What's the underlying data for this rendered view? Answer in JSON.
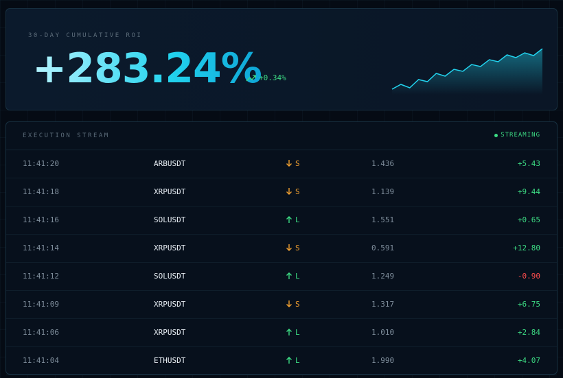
{
  "header": {
    "label": "30-DAY CUMULATIVE ROI",
    "value": "+283.24%",
    "change": "+0.34%",
    "sparkline": [
      0,
      7,
      2,
      14,
      11,
      23,
      19,
      29,
      26,
      36,
      33,
      43,
      40,
      50,
      46,
      53,
      49,
      59
    ]
  },
  "stream": {
    "title": "EXECUTION STREAM",
    "status": "STREAMING",
    "rows": [
      [
        "11:41:20",
        "ARBUSDT",
        "S",
        "1.436",
        "+5.43"
      ],
      [
        "11:41:18",
        "XRPUSDT",
        "S",
        "1.139",
        "+9.44"
      ],
      [
        "11:41:16",
        "SOLUSDT",
        "L",
        "1.551",
        "+0.65"
      ],
      [
        "11:41:14",
        "XRPUSDT",
        "S",
        "0.591",
        "+12.80"
      ],
      [
        "11:41:12",
        "SOLUSDT",
        "L",
        "1.249",
        "-0.90"
      ],
      [
        "11:41:09",
        "XRPUSDT",
        "S",
        "1.317",
        "+6.75"
      ],
      [
        "11:41:06",
        "XRPUSDT",
        "L",
        "1.010",
        "+2.84"
      ],
      [
        "11:41:04",
        "ETHUSDT",
        "L",
        "1.990",
        "+4.07"
      ]
    ]
  }
}
